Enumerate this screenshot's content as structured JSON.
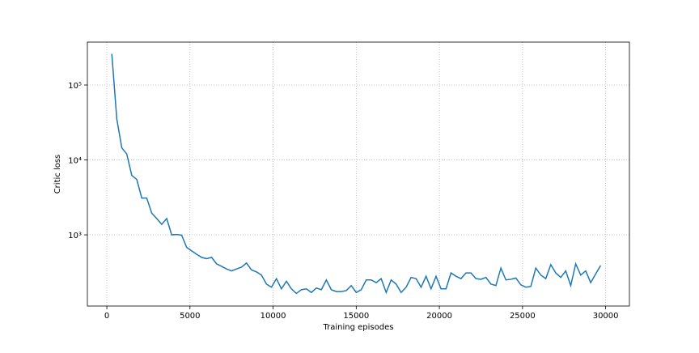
{
  "chart_data": {
    "type": "line",
    "x_label": "Training episodes",
    "y_label": "Critic loss",
    "x": [
      300,
      600,
      900,
      1200,
      1500,
      1800,
      2100,
      2400,
      2700,
      3000,
      3300,
      3600,
      3900,
      4200,
      4500,
      4800,
      5100,
      5400,
      5700,
      6000,
      6300,
      6600,
      6900,
      7200,
      7500,
      7800,
      8100,
      8400,
      8700,
      9000,
      9300,
      9600,
      9900,
      10200,
      10500,
      10800,
      11100,
      11400,
      11700,
      12000,
      12300,
      12600,
      12900,
      13200,
      13500,
      13800,
      14100,
      14400,
      14700,
      15000,
      15300,
      15600,
      15900,
      16200,
      16500,
      16800,
      17100,
      17400,
      17700,
      18000,
      18300,
      18600,
      18900,
      19200,
      19500,
      19800,
      20100,
      20400,
      20700,
      21000,
      21300,
      21600,
      21900,
      22200,
      22500,
      22800,
      23100,
      23400,
      23700,
      24000,
      24300,
      24600,
      24900,
      25200,
      25500,
      25800,
      26100,
      26400,
      26700,
      27000,
      27300,
      27600,
      27900,
      28200,
      28500,
      28800,
      29100,
      29400,
      29700
    ],
    "series": [
      {
        "name": "Critic loss",
        "color": "#1f77b4",
        "values": [
          260000,
          35000,
          14500,
          12000,
          6200,
          5500,
          3100,
          3100,
          1950,
          1650,
          1380,
          1650,
          1000,
          1010,
          990,
          680,
          610,
          550,
          500,
          480,
          500,
          410,
          380,
          350,
          330,
          350,
          370,
          420,
          340,
          320,
          290,
          220,
          200,
          260,
          190,
          240,
          190,
          165,
          185,
          190,
          170,
          195,
          185,
          250,
          185,
          175,
          175,
          180,
          210,
          170,
          185,
          250,
          250,
          230,
          260,
          170,
          250,
          220,
          170,
          200,
          270,
          260,
          200,
          280,
          190,
          280,
          190,
          190,
          310,
          280,
          260,
          310,
          310,
          260,
          255,
          270,
          220,
          210,
          360,
          250,
          255,
          265,
          215,
          200,
          205,
          360,
          290,
          260,
          400,
          310,
          270,
          330,
          210,
          410,
          290,
          330,
          230,
          300,
          390
        ]
      }
    ],
    "xlim": [
      -1170,
      31430
    ],
    "ylim": [
      112,
      374000
    ],
    "log_y": true,
    "grid": true,
    "xticks": [
      0,
      5000,
      10000,
      15000,
      20000,
      25000,
      30000
    ],
    "yticks": [
      {
        "value": 1000,
        "label": "10³"
      },
      {
        "value": 10000,
        "label": "10⁴"
      },
      {
        "value": 100000,
        "label": "10⁵"
      }
    ]
  }
}
